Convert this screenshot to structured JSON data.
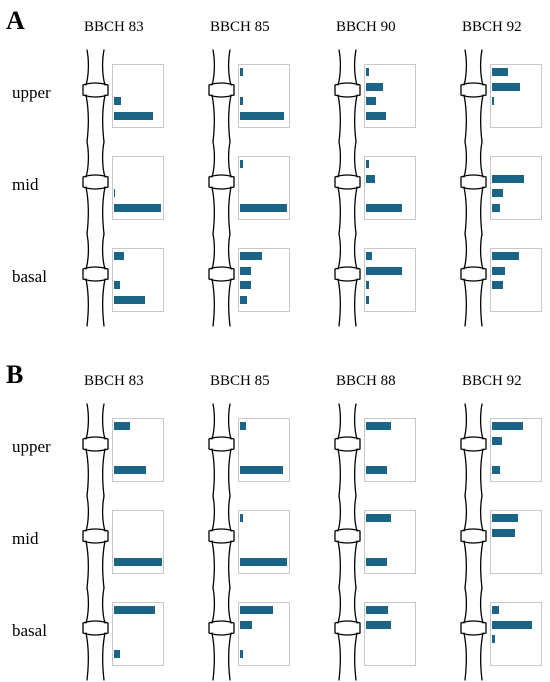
{
  "colors": {
    "bar": "#1a6485",
    "box_border": "#c8c8c8",
    "stem_line": "#000000"
  },
  "chart_data": [
    {
      "type": "bar",
      "panel": "A",
      "orientation": "horizontal",
      "columns": [
        "BBCH 83",
        "BBCH 85",
        "BBCH 90",
        "BBCH 92"
      ],
      "rows": [
        "upper",
        "mid",
        "basal"
      ],
      "bars_per_cell": 4,
      "xlim": [
        0,
        1
      ],
      "values": {
        "upper": [
          [
            0,
            0,
            0.15,
            0.82
          ],
          [
            0.06,
            0,
            0.06,
            0.92
          ],
          [
            0.06,
            0.35,
            0.2,
            0.41
          ],
          [
            0.33,
            0.59,
            0.04,
            0
          ]
        ],
        "mid": [
          [
            0,
            0,
            0.03,
            0.97
          ],
          [
            0.06,
            0,
            0,
            0.98
          ],
          [
            0.06,
            0.19,
            0,
            0.75
          ],
          [
            0,
            0.67,
            0.23,
            0.16
          ]
        ],
        "basal": [
          [
            0.21,
            0,
            0.12,
            0.65
          ],
          [
            0.46,
            0.22,
            0.22,
            0.15
          ],
          [
            0.12,
            0.74,
            0.06,
            0.06
          ],
          [
            0.56,
            0.27,
            0.23,
            0
          ]
        ]
      }
    },
    {
      "type": "bar",
      "panel": "B",
      "orientation": "horizontal",
      "columns": [
        "BBCH 83",
        "BBCH 85",
        "BBCH 88",
        "BBCH 92"
      ],
      "rows": [
        "upper",
        "mid",
        "basal"
      ],
      "bars_per_cell": 4,
      "xlim": [
        0,
        1
      ],
      "values": {
        "upper": [
          [
            0.34,
            0,
            0,
            0.67
          ],
          [
            0.13,
            0,
            0,
            0.89
          ],
          [
            0.52,
            0,
            0,
            0.44
          ],
          [
            0.65,
            0.2,
            0,
            0.17
          ]
        ],
        "mid": [
          [
            0,
            0,
            0,
            0.99
          ],
          [
            0.06,
            0,
            0,
            0.97
          ],
          [
            0.52,
            0,
            0,
            0.44
          ],
          [
            0.55,
            0.48,
            0,
            0
          ]
        ],
        "basal": [
          [
            0.86,
            0,
            0,
            0.12
          ],
          [
            0.68,
            0.25,
            0,
            0.06
          ],
          [
            0.45,
            0.53,
            0,
            0
          ],
          [
            0.15,
            0.83,
            0.07,
            0
          ]
        ]
      }
    }
  ]
}
